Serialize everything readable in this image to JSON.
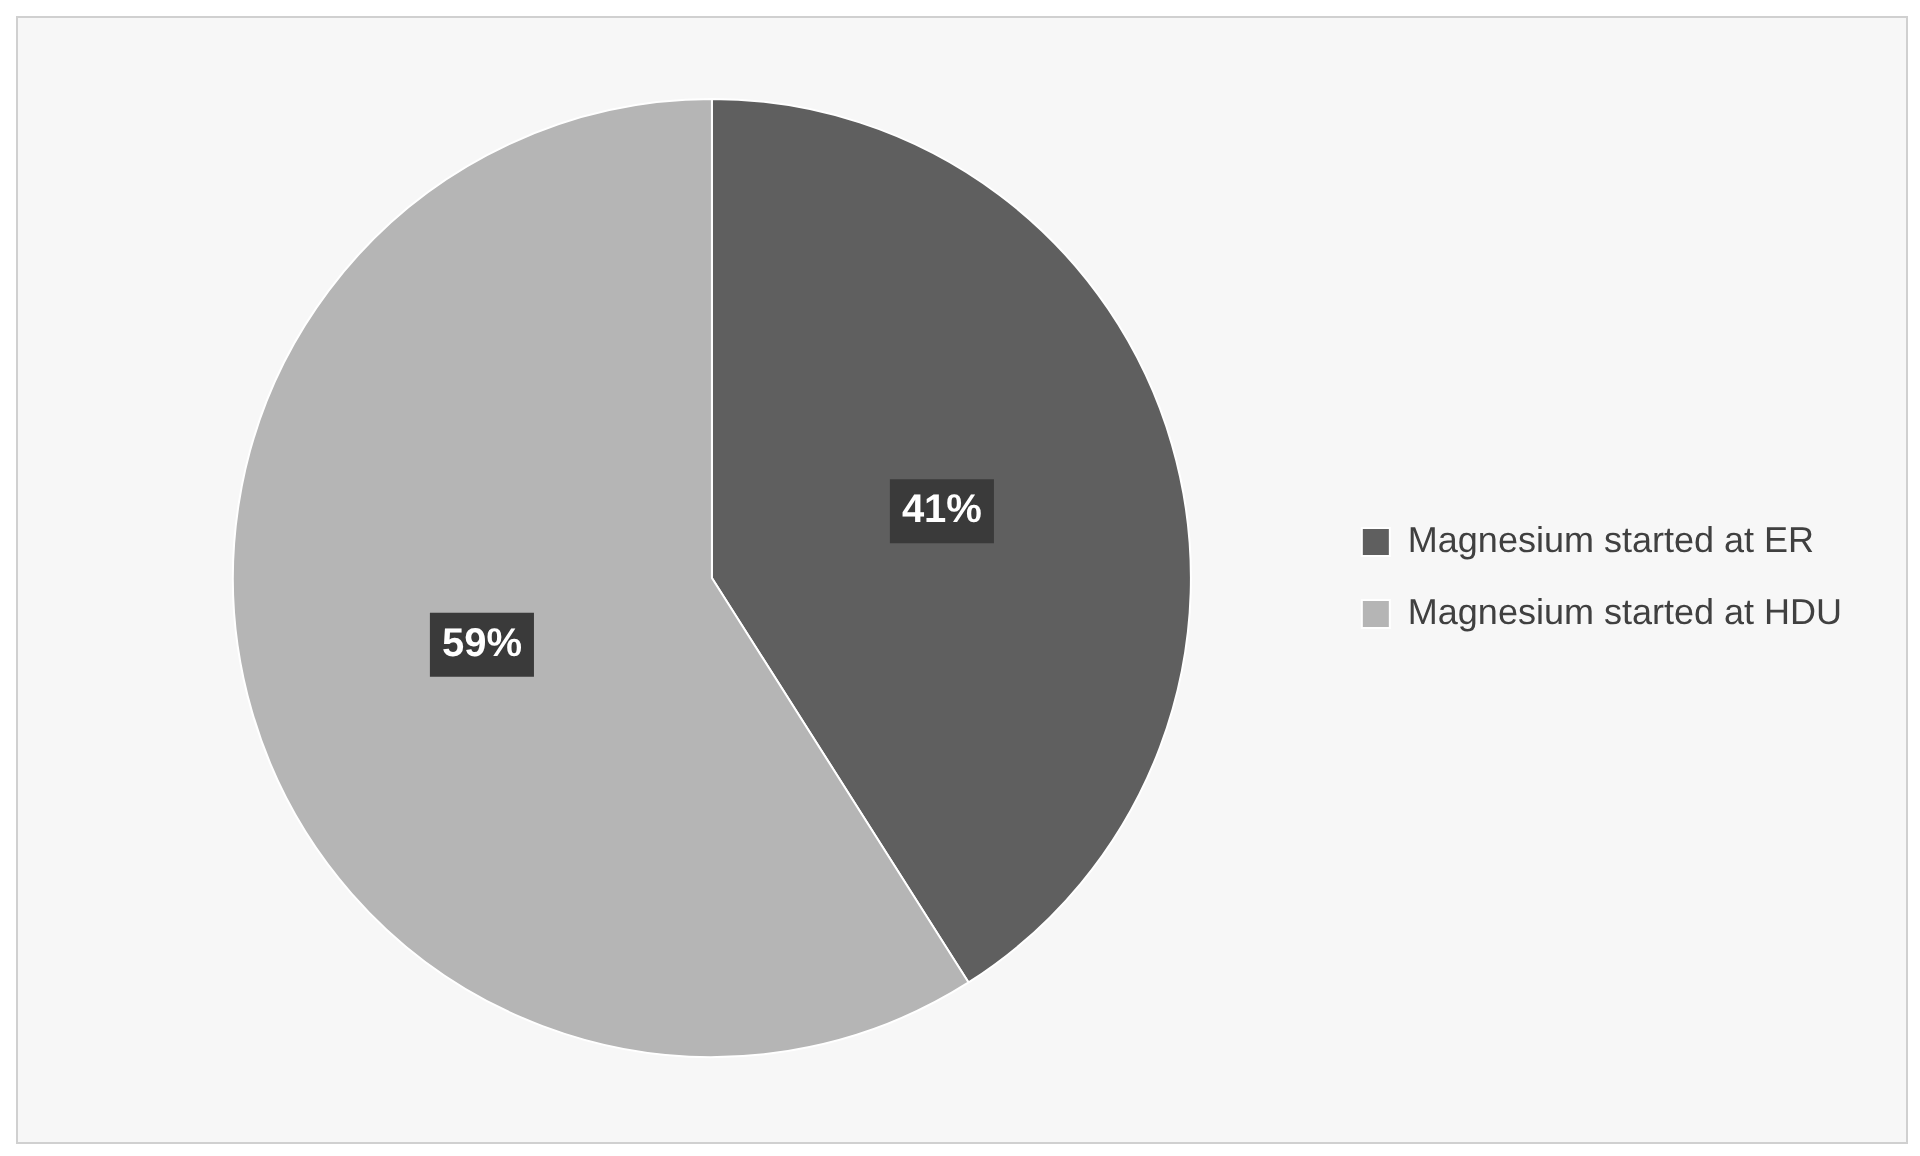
{
  "chart_data": {
    "type": "pie",
    "categories": [
      "Magnesium started at ER",
      "Magnesium started at HDU"
    ],
    "values": [
      41,
      59
    ],
    "colors": [
      "#5f5f5f",
      "#b5b5b5"
    ],
    "value_labels": [
      "41%",
      "59%"
    ],
    "legend": "right"
  }
}
